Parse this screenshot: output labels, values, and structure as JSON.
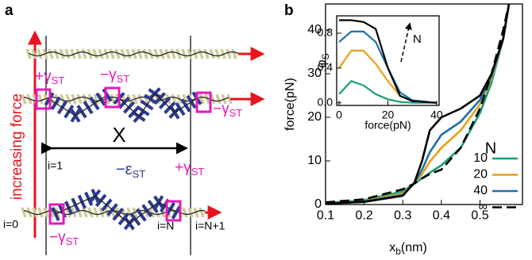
{
  "diagram": {
    "panel_label": "a",
    "force_label": "increasing force",
    "separation_label": "X",
    "energy_labels": [
      {
        "main": "+γ",
        "sub": "ST"
      },
      {
        "main": "−γ",
        "sub": "ST"
      },
      {
        "main": "−γ",
        "sub": "ST"
      },
      {
        "main": "+γ",
        "sub": "ST"
      },
      {
        "main": "−γ",
        "sub": "ST"
      }
    ],
    "stacking_label": {
      "main": "−ε",
      "sub": "ST"
    },
    "indices": [
      "i=0",
      "i=1",
      "i=N",
      "i=N+1"
    ]
  },
  "chart_data": [
    {
      "type": "line",
      "panel_label": "b",
      "x_label": [
        "x",
        "b",
        "(nm)"
      ],
      "y_label": "force(pN)",
      "xlim": [
        0.1,
        0.61
      ],
      "ylim": [
        0,
        46
      ],
      "xticks": [
        0.1,
        0.2,
        0.3,
        0.4,
        0.5
      ],
      "yticks": [
        0,
        10,
        20,
        30,
        40
      ],
      "legend_title": "N",
      "legend": "lower right",
      "x": [
        0.1,
        0.2,
        0.3,
        0.33,
        0.35,
        0.37,
        0.4,
        0.45,
        0.5,
        0.53,
        0.56,
        0.575
      ],
      "series": [
        {
          "name": "10",
          "color": "#1b9e77",
          "values": [
            0.3,
            1,
            3,
            4.8,
            6,
            7.3,
            9,
            13,
            21,
            28,
            38,
            46
          ]
        },
        {
          "name": "20",
          "color": "#e6a117",
          "values": [
            0.2,
            0.8,
            2.5,
            4.8,
            7,
            9.8,
            13,
            17,
            23,
            29,
            38,
            46
          ]
        },
        {
          "name": "40",
          "color": "#1f6fa8",
          "values": [
            0.2,
            0.7,
            2.2,
            4.9,
            8,
            12,
            16,
            19,
            24,
            29.5,
            38,
            46
          ]
        },
        {
          "name": "∞",
          "color": "#000000",
          "dashed": true,
          "values": [
            0.5,
            1.2,
            3.5,
            4.8,
            6,
            7,
            8,
            13,
            22,
            30,
            40,
            46
          ]
        },
        {
          "color": "#000000",
          "values": [
            0.2,
            0.6,
            2,
            5,
            10,
            17,
            20,
            22,
            25,
            30,
            38,
            46
          ]
        }
      ]
    },
    {
      "type": "line",
      "y_label": [
        "φ",
        "S"
      ],
      "x_label": "force(pN)",
      "annotation": "N",
      "xlim": [
        -1,
        41
      ],
      "ylim": [
        -0.03,
        1.0
      ],
      "xticks": [
        0,
        20,
        40
      ],
      "yticks": [
        {
          "value": 0,
          "label": "0.0"
        },
        0.4,
        0.8
      ],
      "x": [
        0,
        5,
        10,
        15,
        20,
        25,
        30,
        40
      ],
      "series": [
        {
          "color": "#1b9e77",
          "values": [
            0.1,
            0.25,
            0.2,
            0.1,
            0.04,
            0.01,
            0,
            0
          ]
        },
        {
          "color": "#e6a117",
          "values": [
            0.4,
            0.6,
            0.6,
            0.45,
            0.25,
            0.08,
            0.02,
            0
          ]
        },
        {
          "color": "#1f6fa8",
          "values": [
            0.7,
            0.82,
            0.82,
            0.7,
            0.4,
            0.12,
            0.03,
            0
          ]
        },
        {
          "color": "#000000",
          "values": [
            0.95,
            0.95,
            0.93,
            0.85,
            0.4,
            0.08,
            0.02,
            0
          ]
        }
      ]
    }
  ]
}
